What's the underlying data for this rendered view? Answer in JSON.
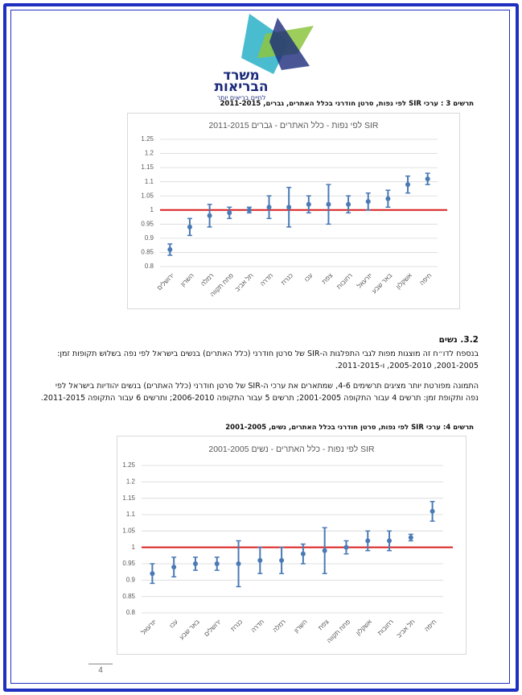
{
  "header": {
    "logo_line1": "משרד",
    "logo_line2": "הבריאות",
    "slogan": "לחיים בריאים יותר"
  },
  "captions": [
    "תרשים 3 : ערכי SIR לפי נפות, סרטן חודרני בכלל האתרים, גברים, 2011-2015",
    "תרשים 4: ערכי SIR לפי נפות, סרטן חודרני בכלל האתרים, נשים, 2001-2005"
  ],
  "section": {
    "heading": "3.2. נשים",
    "paragraphs": [
      "בנספח לדו״ח זה מוצגות מפות לגבי התפלגות ה-SIR של סרטן חודרני (כלל האתרים) בנשים בישראל לפי נפה בשלוש תקופות זמן: 2001-2005, 2005-2010, ו-2011-2015.",
      "התמונה מפורטת יותר מציגים תרשימים 4-6, שמתארים את ערכי ה-SIR של סרטן חודרני (כלל האתרים) בנשים יהודיות בישראל לפי נפה ותקופת זמן: תרשים 4 עבור התקופה 2001-2005; תרשים 5 עבור התקופה 2006-2010; ותרשים 6 עבור התקופה 2011-2015."
    ]
  },
  "page_number": "4",
  "chart_data": [
    {
      "type": "errorbar",
      "title": "SIR לפי נפות - כלל האתרים - גברים 2011-2015",
      "categories": [
        "ירושלים",
        "השרון",
        "רמלה",
        "פתח תקווה",
        "תל אביב",
        "חדרה",
        "כנרת",
        "עכו",
        "צפת",
        "רחובות",
        "יזרעאל",
        "באר שבע",
        "אשקלון",
        "חיפה"
      ],
      "values": [
        0.86,
        0.94,
        0.98,
        0.99,
        1.0,
        1.01,
        1.01,
        1.02,
        1.02,
        1.02,
        1.03,
        1.04,
        1.09,
        1.11
      ],
      "errors": [
        0.02,
        0.03,
        0.04,
        0.02,
        0.01,
        0.04,
        0.07,
        0.03,
        0.07,
        0.03,
        0.03,
        0.03,
        0.03,
        0.02
      ],
      "color": "#4a7ab5",
      "ylim": [
        0.8,
        1.25
      ],
      "yticks": [
        0.8,
        0.85,
        0.9,
        0.95,
        1,
        1.05,
        1.1,
        1.15,
        1.2,
        1.25
      ],
      "grid": true,
      "reference_line": 1,
      "reference_color": "#d91e1e"
    },
    {
      "type": "errorbar",
      "title": "SIR לפי נפות - כלל האתרים - נשים 2001-2005",
      "categories": [
        "יזרעאל",
        "עכו",
        "באר שבע",
        "ירושלים",
        "כנרת",
        "חדרה",
        "רמלה",
        "השרון",
        "צפת",
        "פתח תקווה",
        "אשקלון",
        "רחובות",
        "תל אביב",
        "חיפה"
      ],
      "values": [
        0.92,
        0.94,
        0.95,
        0.95,
        0.95,
        0.96,
        0.96,
        0.98,
        0.99,
        1.0,
        1.02,
        1.02,
        1.03,
        1.11
      ],
      "errors": [
        0.03,
        0.03,
        0.02,
        0.02,
        0.07,
        0.04,
        0.04,
        0.03,
        0.07,
        0.02,
        0.03,
        0.03,
        0.01,
        0.03
      ],
      "color": "#4a7ab5",
      "ylim": [
        0.8,
        1.25
      ],
      "yticks": [
        0.8,
        0.85,
        0.9,
        0.95,
        1,
        1.05,
        1.1,
        1.15,
        1.2,
        1.25
      ],
      "grid": true,
      "reference_line": 1,
      "reference_color": "#d91e1e"
    }
  ]
}
